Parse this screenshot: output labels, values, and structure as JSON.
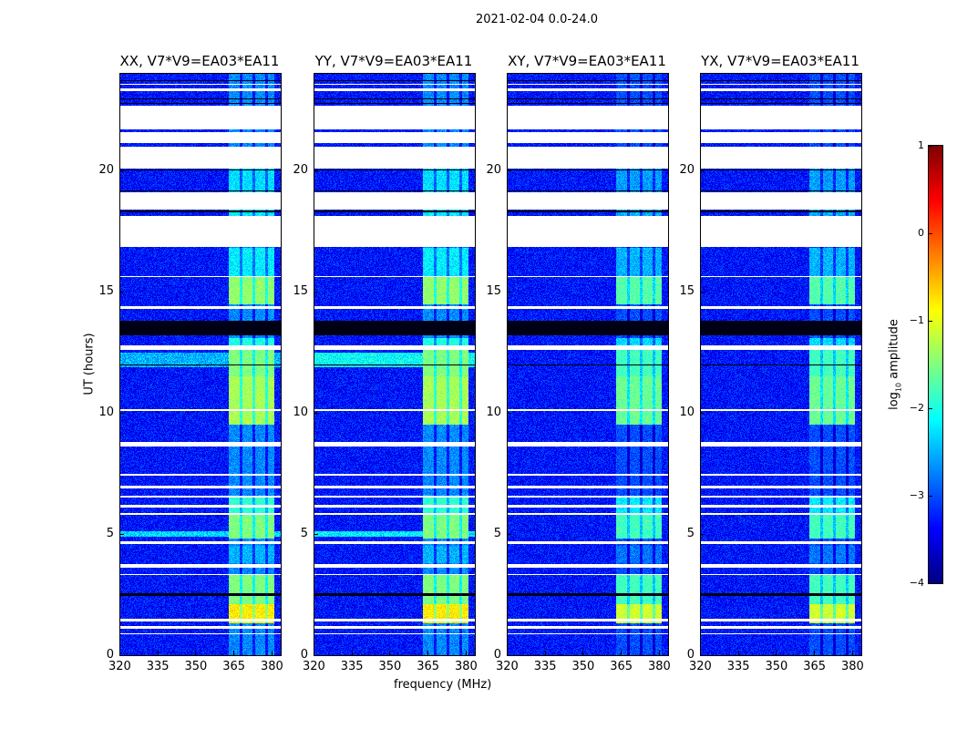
{
  "suptitle": "2021-02-04 0.0-24.0",
  "chart_data": {
    "type": "heatmap",
    "title": "2021-02-04 0.0-24.0",
    "xlabel": "frequency (MHz)",
    "ylabel": "UT (hours)",
    "xlim": [
      320,
      383.6
    ],
    "ylim": [
      0,
      24
    ],
    "xticks": [
      "320",
      "335",
      "350",
      "365",
      "380"
    ],
    "xtick_values": [
      320,
      335,
      350,
      365,
      380
    ],
    "yticks": [
      "0",
      "5",
      "10",
      "15",
      "20"
    ],
    "ytick_values": [
      0,
      5,
      10,
      15,
      20
    ],
    "panels": [
      {
        "title": "XX, V7*V9=EA03*EA11",
        "extra": [
          [
            11.9,
            12.5,
            -2.5
          ],
          [
            4.9,
            5.1,
            -2.3
          ]
        ]
      },
      {
        "title": "YY, V7*V9=EA03*EA11",
        "extra": [
          [
            11.9,
            12.5,
            -2.1
          ],
          [
            4.9,
            5.1,
            -2.2
          ]
        ]
      },
      {
        "title": "XY, V7*V9=EA03*EA11",
        "extra": []
      },
      {
        "title": "YX, V7*V9=EA03*EA11",
        "extra": []
      }
    ],
    "background_log_amp": -3.3,
    "bright_band_mhz": [
      363,
      381
    ],
    "bright_band_gaps_mhz": [
      368,
      373,
      378
    ],
    "bright_band_levels": [
      [
        1.3,
        2.1,
        -0.8
      ],
      [
        2.1,
        3.3,
        -1.5
      ],
      [
        3.8,
        4.5,
        -2.5
      ],
      [
        4.8,
        5.8,
        -1.5
      ],
      [
        5.8,
        6.5,
        -1.9
      ],
      [
        9.5,
        11.5,
        -1.3
      ],
      [
        11.5,
        12.6,
        -1.5
      ],
      [
        12.8,
        13.1,
        -2.0
      ],
      [
        14.5,
        15.6,
        -1.4
      ],
      [
        15.6,
        16.8,
        -2.2
      ],
      [
        18.15,
        18.4,
        -2.2
      ],
      [
        19.1,
        20.1,
        -2.3
      ]
    ],
    "flagged_hours": [
      [
        20.1,
        21.0
      ],
      [
        21.15,
        21.6
      ],
      [
        21.7,
        22.7
      ],
      [
        18.4,
        19.1
      ],
      [
        16.85,
        18.15
      ],
      [
        12.6,
        12.8
      ],
      [
        8.6,
        8.8
      ],
      [
        7.4,
        7.5
      ],
      [
        6.9,
        7.0
      ],
      [
        6.5,
        6.6
      ],
      [
        6.1,
        6.2
      ],
      [
        5.8,
        5.85
      ],
      [
        4.6,
        4.7
      ],
      [
        3.6,
        3.75
      ],
      [
        3.3,
        3.35
      ],
      [
        1.4,
        1.5
      ],
      [
        1.1,
        1.2
      ],
      [
        0.85,
        0.9
      ],
      [
        10.1,
        10.15
      ],
      [
        15.6,
        15.65
      ],
      [
        14.3,
        14.4
      ],
      [
        23.3,
        23.4
      ],
      [
        23.55,
        23.6
      ]
    ],
    "dark_hours": [
      [
        13.2,
        13.8
      ],
      [
        2.45,
        2.55
      ],
      [
        11.95,
        12.0
      ],
      [
        16.85,
        16.9
      ],
      [
        19.15,
        19.2
      ],
      [
        20.0,
        20.05
      ],
      [
        18.3,
        18.35
      ],
      [
        22.95,
        23.0
      ],
      [
        22.75,
        22.8
      ],
      [
        23.7,
        23.75
      ]
    ],
    "colorbar": {
      "label_prefix": "log",
      "label_sub": "10",
      "label_suffix": " amplitude",
      "range": [
        -4,
        1
      ],
      "ticks": [
        "−4",
        "−3",
        "−2",
        "−1",
        "0",
        "1"
      ],
      "tick_values": [
        -4,
        -3,
        -2,
        -1,
        0,
        1
      ],
      "colormap": "jet"
    }
  }
}
